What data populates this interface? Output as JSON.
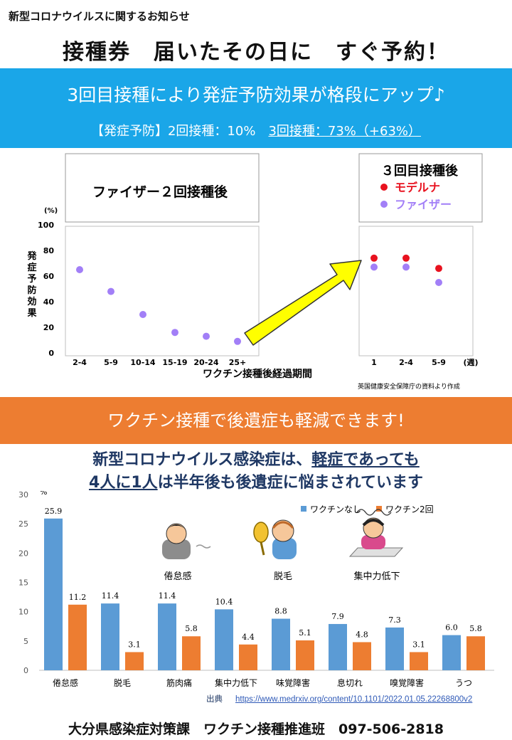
{
  "header": {
    "small_title": "新型コロナウイルスに関するお知らせ",
    "main_title": "接種券　届いたその日に　すぐ予約！"
  },
  "band1": {
    "heading": "3回目接種により発症予防効果が格段にアップ♪",
    "note_prefix": "【発症予防】2回接種：10%　",
    "note_underlined": "3回接種：73%（+63%）"
  },
  "chart_efficacy": {
    "chart_data": [
      {
        "type": "scatter",
        "title": "ファイザー２回接種後",
        "ylabel": "発症予防効果",
        "y_unit": "(%)",
        "xlabel": "ワクチン接種後経過期間",
        "ylim": [
          0,
          100
        ],
        "y_ticks": [
          "0",
          "20",
          "40",
          "60",
          "80",
          "100"
        ],
        "categories": [
          "2-4",
          "5-9",
          "10-14",
          "15-19",
          "20-24",
          "25+"
        ],
        "series": [
          {
            "name": "ファイザー",
            "color": "#a27ff7",
            "values": [
              65,
              48,
              30,
              16,
              13,
              9
            ]
          }
        ]
      },
      {
        "type": "scatter",
        "title": "３回目接種後",
        "x_unit": "(週)",
        "ylim": [
          0,
          100
        ],
        "categories": [
          "1",
          "2-4",
          "5-9"
        ],
        "series": [
          {
            "name": "モデルナ",
            "color": "#e8121f",
            "values": [
              74,
              74,
              66
            ]
          },
          {
            "name": "ファイザー",
            "color": "#a27ff7",
            "values": [
              67,
              67,
              55
            ]
          }
        ]
      }
    ],
    "source_note": "英国健康安全保障庁の資料より作成"
  },
  "band2": {
    "heading": "ワクチン接種で後遺症も軽減できます!"
  },
  "message": {
    "line1_a": "新型コロナウイルス感染症は、",
    "line1_b": "軽症であっても",
    "line2_a": "4人に1人",
    "line2_b": "は半年後も後遺症に悩まされています"
  },
  "chart_symptoms": {
    "chart_data": {
      "type": "bar",
      "y_unit": "%",
      "ylim": [
        0,
        30
      ],
      "y_ticks": [
        "0",
        "5",
        "10",
        "15",
        "20",
        "25",
        "30"
      ],
      "categories": [
        "倦怠感",
        "脱毛",
        "筋肉痛",
        "集中力低下",
        "味覚障害",
        "息切れ",
        "嗅覚障害",
        "うつ"
      ],
      "series": [
        {
          "name": "ワクチンなし",
          "color": "#5b9bd5",
          "values": [
            25.9,
            11.4,
            11.4,
            10.4,
            8.8,
            7.9,
            7.3,
            6.0
          ],
          "labels": [
            "25.9",
            "11.4",
            "11.4",
            "10.4",
            "8.8",
            "7.9",
            "7.3",
            "6.0"
          ]
        },
        {
          "name": "ワクチン2回",
          "color": "#ed7d31",
          "values": [
            11.2,
            3.1,
            5.8,
            4.4,
            5.1,
            4.8,
            3.1,
            5.8
          ],
          "labels": [
            "11.2",
            "3.1",
            "5.8",
            "4.4",
            "5.1",
            "4.8",
            "3.1",
            "5.8"
          ]
        }
      ],
      "legend_position": "top-right",
      "illustration_captions": [
        "倦怠感",
        "脱毛",
        "集中力低下"
      ]
    }
  },
  "source": {
    "label": "出典",
    "url": "https://www.medrxiv.org/content/10.1101/2022.01.05.22268800v2"
  },
  "footer": {
    "text": "大分県感染症対策課　ワクチン接種推進班　097-506-2818"
  }
}
